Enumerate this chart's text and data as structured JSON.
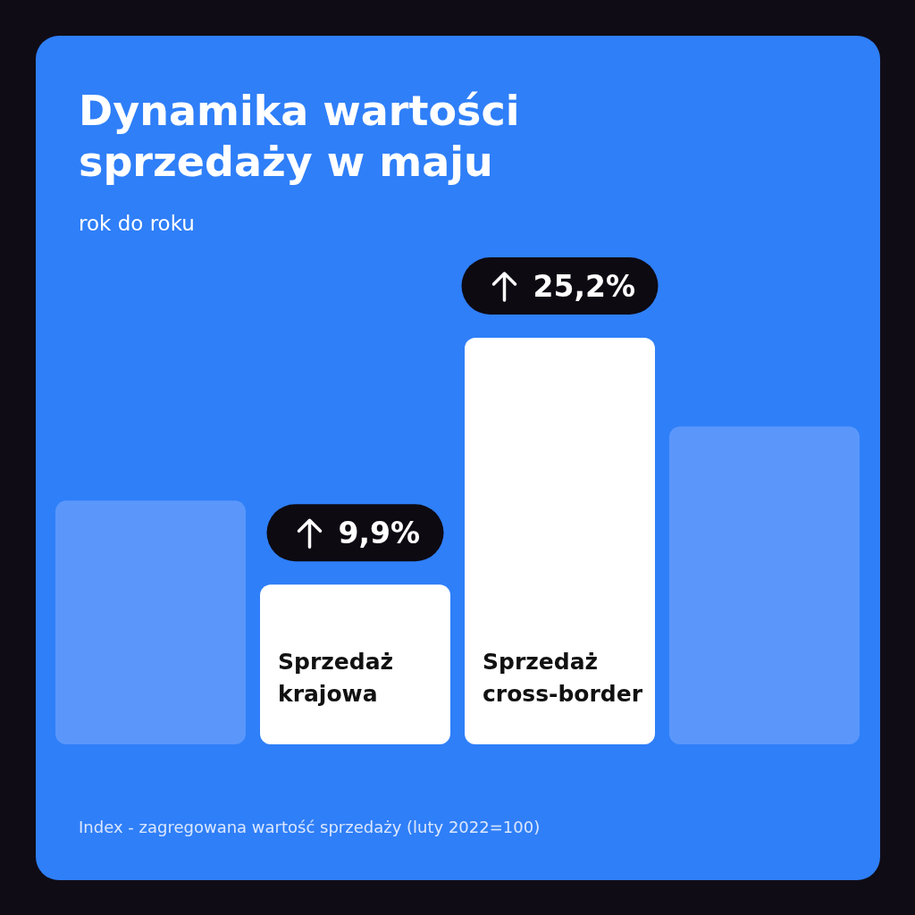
{
  "chart_data": {
    "type": "bar",
    "title": "Dynamika wartości sprzedaży w maju",
    "subtitle": "rok do roku",
    "categories": [
      null,
      "Sprzedaż krajowa",
      "Sprzedaż cross-border",
      null
    ],
    "values": [
      15.1,
      9.9,
      25.2,
      19.7
    ],
    "colors": [
      "#5b97fb",
      "#ffffff",
      "#ffffff",
      "#5b97fb"
    ],
    "value_labels": [
      null,
      "9,9%",
      "25,2%",
      null
    ],
    "annotations": [
      "Index - zagregowana wartość sprzedaży (luty 2022=100)"
    ]
  }
}
